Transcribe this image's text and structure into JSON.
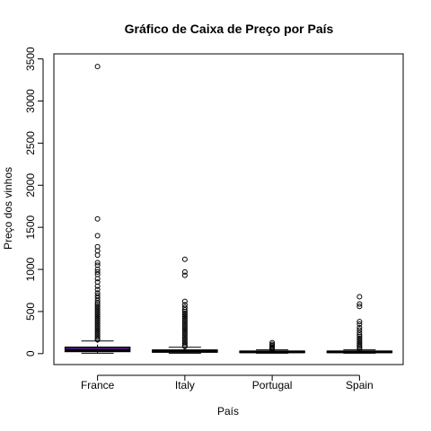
{
  "chart_data": {
    "type": "boxplot",
    "title": "Gráfico de Caixa de Preço por País",
    "xlabel": "País",
    "ylabel": "Preço dos vinhos",
    "categories": [
      "France",
      "Italy",
      "Portugal",
      "Spain"
    ],
    "ylim": [
      -130,
      3560
    ],
    "yticks": [
      0,
      500,
      1000,
      1500,
      2000,
      2500,
      3000,
      3500
    ],
    "grid": false,
    "box_fill": "#8a2be2",
    "boxes": [
      {
        "category": "France",
        "min": 4,
        "q1": 25,
        "median": 40,
        "q3": 75,
        "max": 150,
        "outliers": [
          3410,
          1600,
          1400,
          1270,
          1220,
          1170,
          1080,
          1050,
          1000,
          970,
          940,
          890,
          850,
          800,
          760,
          720,
          690,
          660,
          630,
          600,
          580,
          560,
          540,
          520,
          500,
          480,
          460,
          440,
          420,
          400,
          380,
          360,
          340,
          320,
          300,
          280,
          260,
          240,
          220,
          200,
          180,
          165
        ]
      },
      {
        "category": "Italy",
        "min": 4,
        "q1": 18,
        "median": 28,
        "q3": 42,
        "max": 75,
        "outliers": [
          1120,
          970,
          930,
          620,
          580,
          550,
          520,
          500,
          480,
          460,
          440,
          420,
          400,
          380,
          360,
          340,
          320,
          300,
          280,
          260,
          240,
          220,
          200,
          180,
          160,
          140,
          120,
          100,
          85
        ]
      },
      {
        "category": "Portugal",
        "min": 4,
        "q1": 14,
        "median": 20,
        "q3": 28,
        "max": 45,
        "outliers": [
          130,
          110,
          95,
          80,
          70,
          60,
          50
        ]
      },
      {
        "category": "Spain",
        "min": 4,
        "q1": 14,
        "median": 20,
        "q3": 28,
        "max": 45,
        "outliers": [
          675,
          590,
          560,
          380,
          350,
          310,
          280,
          250,
          220,
          200,
          180,
          160,
          140,
          120,
          100,
          85,
          70,
          55
        ]
      }
    ]
  }
}
